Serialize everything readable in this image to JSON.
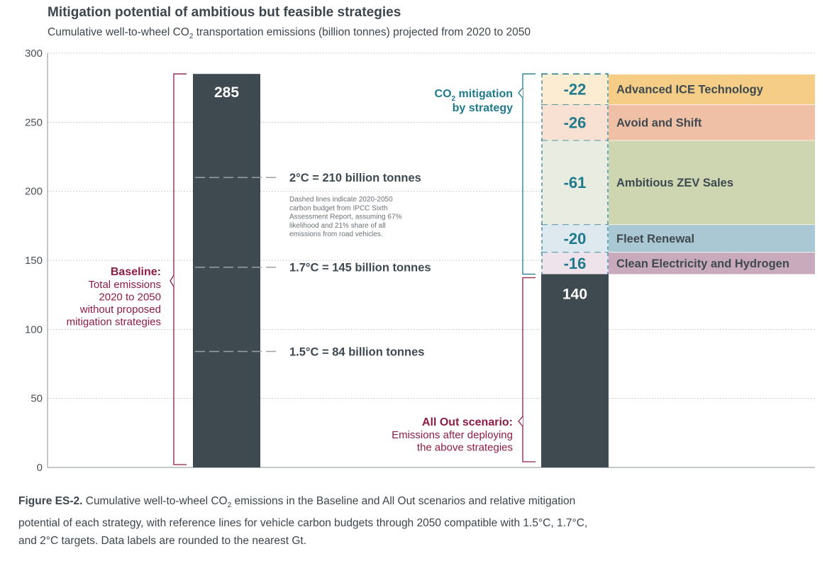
{
  "title": "Mitigation potential of ambitious but feasible strategies",
  "subtitle_pre": "Cumulative well-to-wheel CO",
  "subtitle_sub": "2",
  "subtitle_post": " transportation emissions (billion tonnes) projected from 2020 to 2050",
  "colors": {
    "bar": "#3e4950",
    "baseline": "#8d1c45",
    "mitigation": "#1f7a8c",
    "advanced_ice": "#f5cd86",
    "avoid_shift": "#f0c0a6",
    "zev": "#cdd5b1",
    "fleet": "#aac8d3",
    "clean": "#c9a9bc"
  },
  "chart_data": {
    "type": "bar",
    "ylim": [
      0,
      300
    ],
    "yticks": [
      0,
      50,
      100,
      150,
      200,
      250,
      300
    ],
    "grid": true,
    "bars": [
      {
        "name": "Baseline",
        "value": 285,
        "label": "285"
      },
      {
        "name": "All Out",
        "value": 140,
        "label": "140"
      }
    ],
    "strategies": [
      {
        "name": "Clean Electricity and Hydrogen",
        "value": -16,
        "label": "-16",
        "color": "#c9a9bc",
        "tint": "#eee3ea"
      },
      {
        "name": "Fleet Renewal",
        "value": -20,
        "label": "-20",
        "color": "#aac8d3",
        "tint": "#dde9ee"
      },
      {
        "name": "Ambitious ZEV Sales",
        "value": -61,
        "label": "-61",
        "color": "#cdd5b1",
        "tint": "#e9ede1"
      },
      {
        "name": "Avoid and Shift",
        "value": -26,
        "label": "-26",
        "color": "#f0c0a6",
        "tint": "#f8e0d3"
      },
      {
        "name": "Advanced ICE Technology",
        "value": -22,
        "label": "-22",
        "color": "#f5cd86",
        "tint": "#fbecd2"
      }
    ],
    "reference_lines": [
      {
        "value": 210,
        "label": "2°C = 210 billion tonnes"
      },
      {
        "value": 145,
        "label": "1.7°C = 145 billion tonnes"
      },
      {
        "value": 84,
        "label": "1.5°C = 84 billion tonnes"
      }
    ],
    "note": [
      "Dashed lines indicate 2020-2050",
      "carbon budget from IPCC Sixth",
      "Assessment Report, assuming 67%",
      "likelihood and 21% share of all",
      "emissions from road vehicles."
    ],
    "annotations": {
      "baseline_title": "Baseline:",
      "baseline_lines": [
        "Total emissions",
        "2020 to 2050",
        "without proposed",
        "mitigation strategies"
      ],
      "mitigation_line1_pre": "CO",
      "mitigation_line1_sub": "2",
      "mitigation_line1_post": " mitigation",
      "mitigation_line2": "by strategy",
      "allout_title": "All Out scenario:",
      "allout_lines": [
        "Emissions after deploying",
        "the above strategies"
      ]
    }
  },
  "caption": {
    "lead": "Figure ES-2.",
    "text_pre": " Cumulative well-to-wheel CO",
    "text_sub": "2",
    "text_post": " emissions in the Baseline and All Out scenarios and relative mitigation potential of each strategy, with reference lines for vehicle carbon budgets through 2050 compatible with 1.5°C, 1.7°C, and 2°C targets. Data labels are rounded to the nearest Gt."
  }
}
